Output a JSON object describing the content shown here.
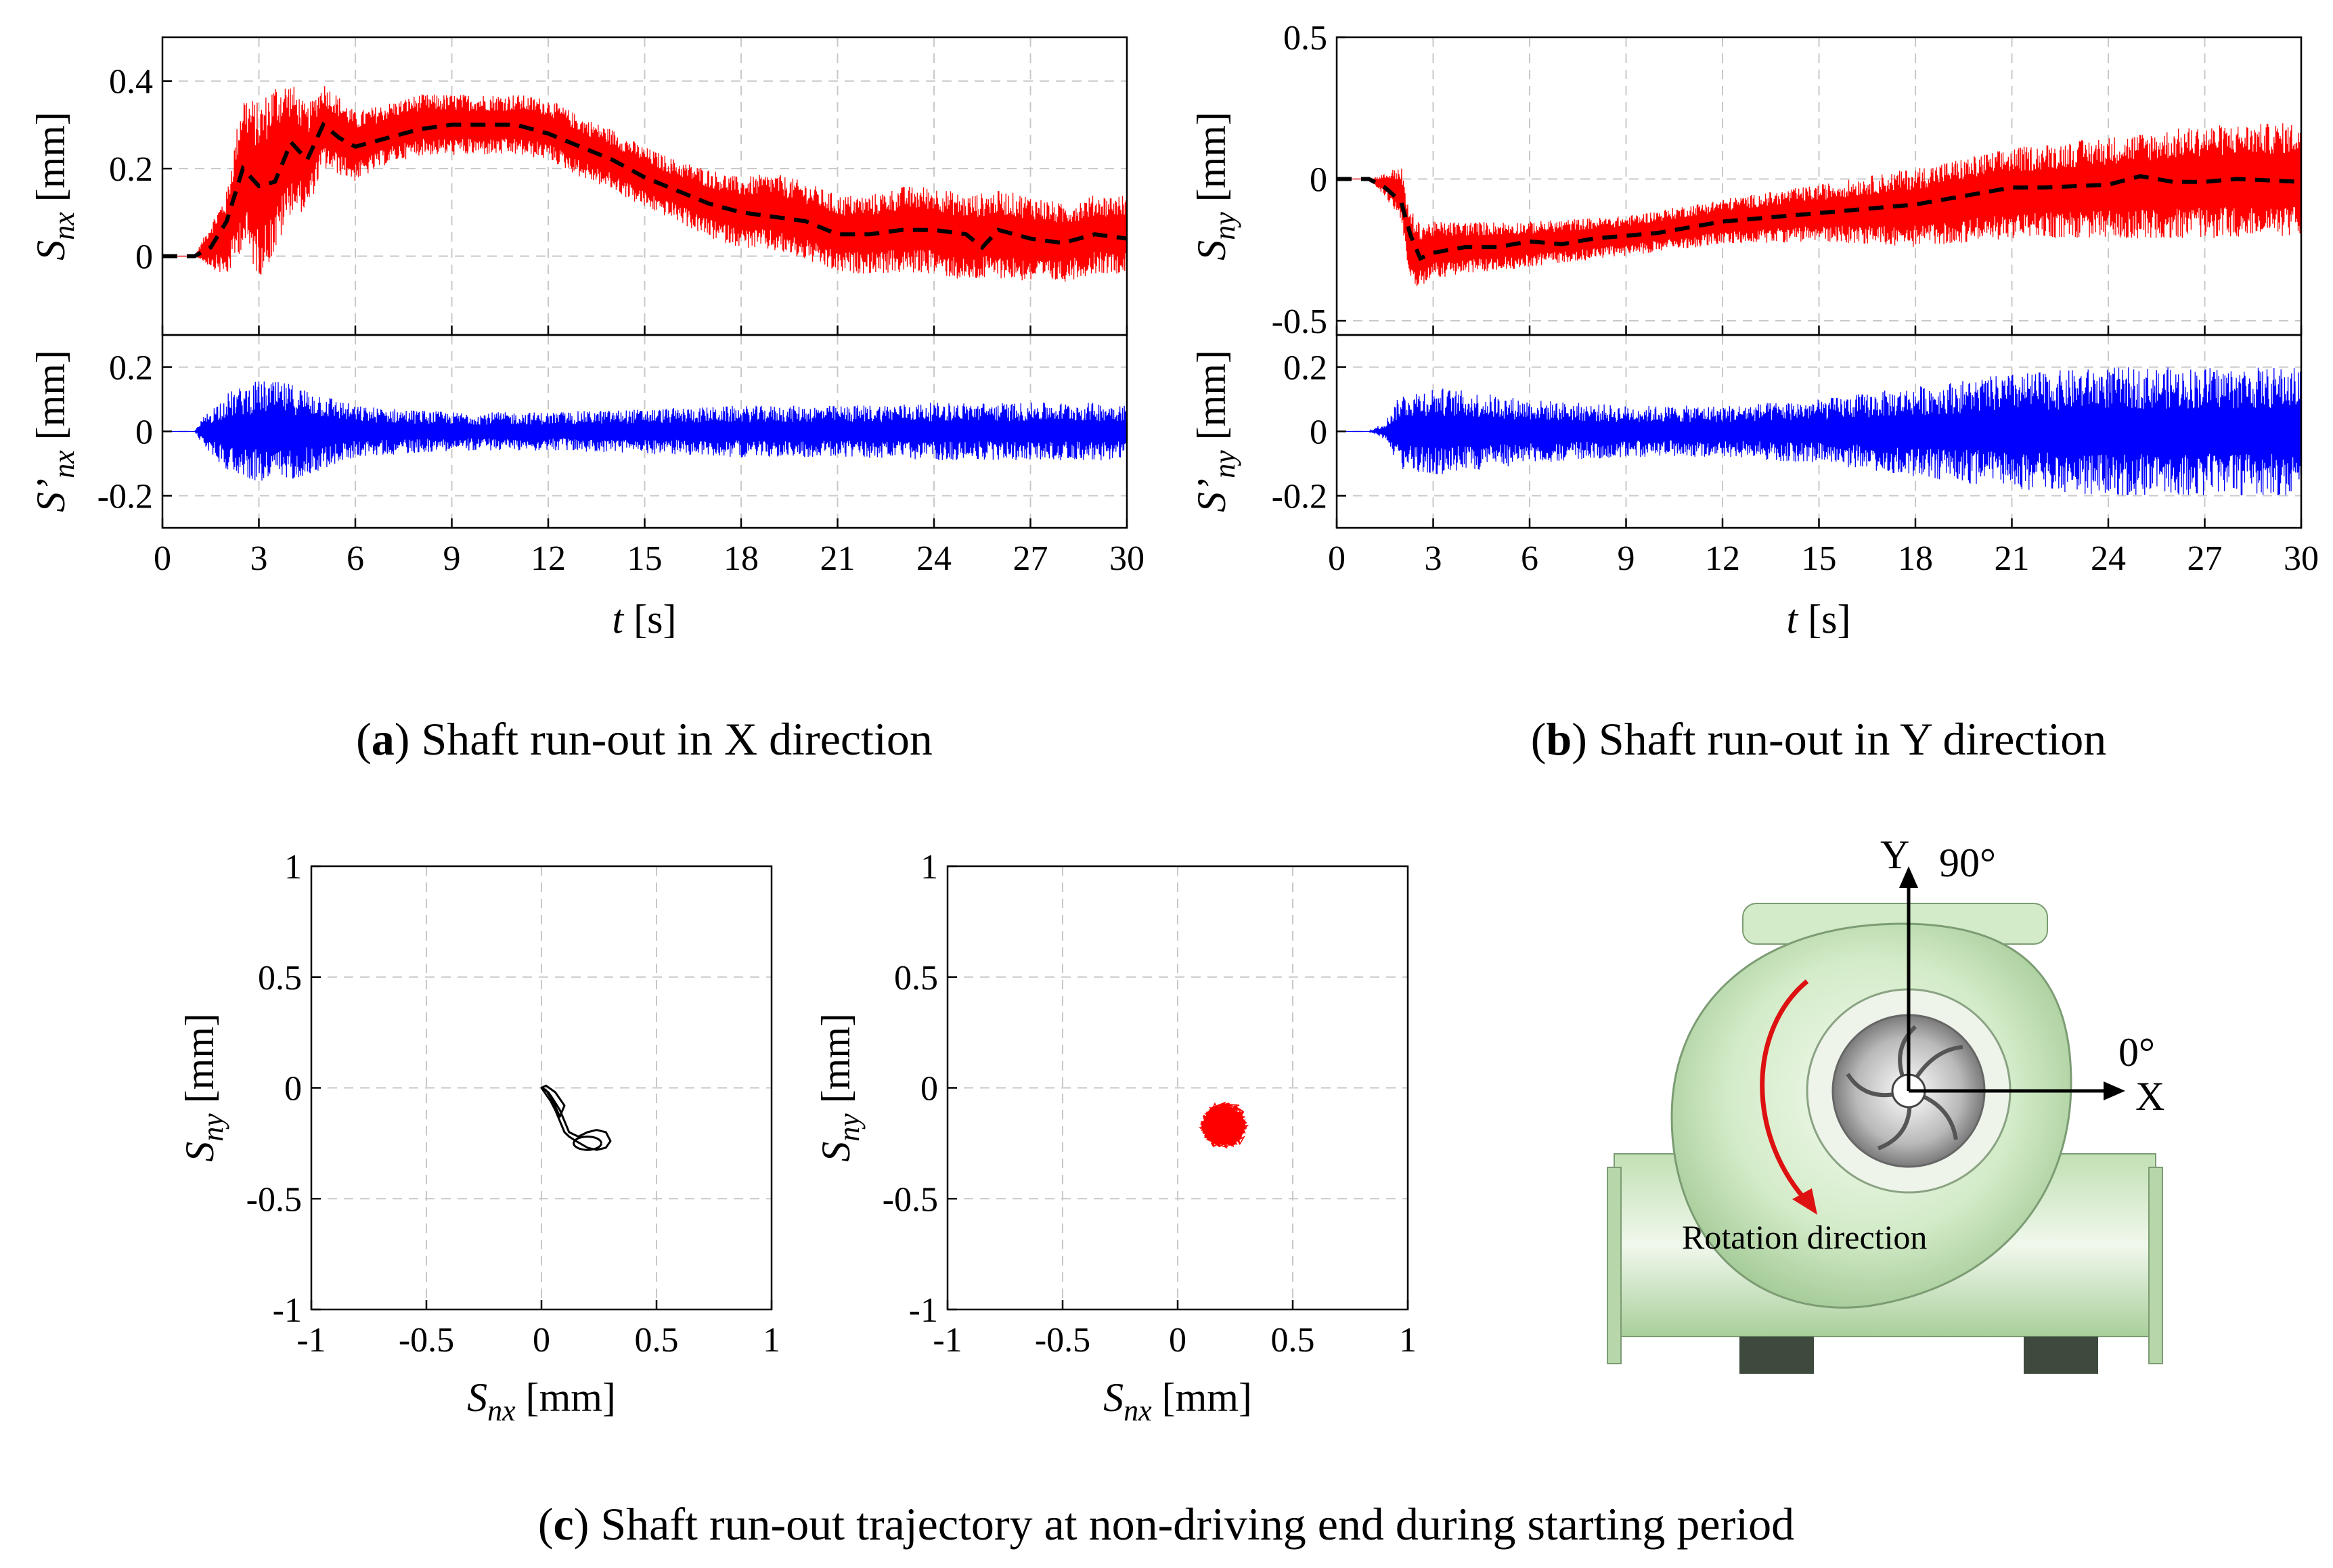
{
  "colors": {
    "raw_signal": "#ff0000",
    "mean_curve": "#000000",
    "oscillation": "#0000ff",
    "orbit_a": "#000000",
    "orbit_b": "#ff0000",
    "arrow": "#dd1111",
    "volute": "#cfe8c4"
  },
  "captions": {
    "a": {
      "label": "a",
      "text": ") Shaft run-out in X direction"
    },
    "b": {
      "label": "b",
      "text": ") Shaft run-out in Y direction"
    },
    "c": {
      "label": "c",
      "text": ") Shaft run-out trajectory at non-driving end during starting period"
    }
  },
  "pump": {
    "y_axis_label": "Y",
    "y_angle": "90°",
    "x_axis_label": "X",
    "x_angle": "0°",
    "rotation_label": "Rotation direction",
    "icon": "pump-volute-icon"
  },
  "chart_data": [
    {
      "id": "a-top",
      "type": "line",
      "xlim": [
        0,
        30
      ],
      "ylim": [
        -0.18,
        0.5
      ],
      "yticks": [
        "0",
        "0.2",
        "0.4"
      ],
      "ytick_values": [
        0,
        0.2,
        0.4
      ],
      "ylabel_main": "S",
      "ylabel_sub": "nx",
      "ylabel_unit": " [mm]",
      "grid": true,
      "series": [
        {
          "kind": "raw",
          "x": [
            0,
            1,
            2,
            2.5,
            3,
            3.5,
            4,
            4.5,
            5,
            6,
            7,
            8,
            9,
            10,
            11,
            12,
            13,
            14,
            15,
            16,
            17,
            18,
            19,
            20,
            21,
            22,
            23,
            24,
            25,
            26,
            27,
            28,
            29,
            30
          ],
          "mean": [
            0,
            0,
            0.05,
            0.2,
            0.15,
            0.2,
            0.25,
            0.22,
            0.3,
            0.25,
            0.28,
            0.3,
            0.3,
            0.3,
            0.3,
            0.29,
            0.25,
            0.22,
            0.18,
            0.15,
            0.12,
            0.1,
            0.1,
            0.08,
            0.05,
            0.05,
            0.06,
            0.06,
            0.04,
            0.05,
            0.04,
            0.03,
            0.05,
            0.05
          ],
          "amp": [
            0,
            0,
            0.1,
            0.18,
            0.2,
            0.2,
            0.15,
            0.12,
            0.1,
            0.08,
            0.07,
            0.07,
            0.07,
            0.07,
            0.07,
            0.07,
            0.07,
            0.07,
            0.07,
            0.07,
            0.08,
            0.08,
            0.09,
            0.09,
            0.09,
            0.09,
            0.1,
            0.1,
            0.1,
            0.1,
            0.1,
            0.09,
            0.09,
            0.09
          ]
        },
        {
          "kind": "mean",
          "x": [
            0,
            1,
            1.5,
            2,
            2.5,
            3,
            3.5,
            4,
            4.5,
            5,
            5.5,
            6,
            7,
            8,
            9,
            10,
            11,
            12,
            13,
            14,
            15,
            16,
            17,
            18,
            19,
            20,
            21,
            22,
            23,
            24,
            25,
            25.5,
            26,
            27,
            28,
            29,
            30
          ],
          "y": [
            0,
            0,
            0.02,
            0.08,
            0.2,
            0.16,
            0.17,
            0.26,
            0.22,
            0.3,
            0.27,
            0.25,
            0.27,
            0.29,
            0.3,
            0.3,
            0.3,
            0.28,
            0.25,
            0.22,
            0.18,
            0.15,
            0.12,
            0.1,
            0.09,
            0.08,
            0.05,
            0.05,
            0.06,
            0.06,
            0.05,
            0.02,
            0.06,
            0.04,
            0.03,
            0.05,
            0.04
          ]
        }
      ]
    },
    {
      "id": "a-bottom",
      "type": "line",
      "xlim": [
        0,
        30
      ],
      "ylim": [
        -0.3,
        0.3
      ],
      "yticks": [
        "-0.2",
        "0",
        "0.2"
      ],
      "ytick_values": [
        -0.2,
        0,
        0.2
      ],
      "xticks": [
        "0",
        "3",
        "6",
        "9",
        "12",
        "15",
        "18",
        "21",
        "24",
        "27",
        "30"
      ],
      "xlabel_main": "t",
      "xlabel_unit": " [s]",
      "ylabel_main": "S’",
      "ylabel_sub": "nx",
      "ylabel_unit": " [mm]",
      "grid": true,
      "series": [
        {
          "kind": "osc",
          "x": [
            0,
            1,
            1.3,
            2,
            3,
            4,
            5,
            6,
            9,
            12,
            15,
            18,
            21,
            24,
            27,
            30
          ],
          "amp": [
            0,
            0,
            0.05,
            0.12,
            0.16,
            0.15,
            0.12,
            0.08,
            0.06,
            0.06,
            0.07,
            0.08,
            0.08,
            0.09,
            0.09,
            0.09
          ]
        }
      ]
    },
    {
      "id": "b-top",
      "type": "line",
      "xlim": [
        0,
        30
      ],
      "ylim": [
        -0.55,
        0.5
      ],
      "yticks": [
        "-0.5",
        "0",
        "0.5"
      ],
      "ytick_values": [
        -0.5,
        0,
        0.5
      ],
      "ylabel_main": "S",
      "ylabel_sub": "ny",
      "ylabel_unit": " [mm]",
      "grid": true,
      "series": [
        {
          "kind": "raw",
          "x": [
            0,
            1,
            1.5,
            2,
            2.2,
            2.5,
            3,
            6,
            9,
            12,
            15,
            18,
            21,
            24,
            27,
            30
          ],
          "mean": [
            0,
            0,
            -0.02,
            -0.05,
            -0.2,
            -0.27,
            -0.25,
            -0.23,
            -0.2,
            -0.15,
            -0.12,
            -0.1,
            -0.05,
            -0.03,
            -0.01,
            0
          ],
          "amp": [
            0,
            0,
            0.04,
            0.1,
            0.12,
            0.12,
            0.1,
            0.08,
            0.07,
            0.08,
            0.1,
            0.14,
            0.16,
            0.18,
            0.2,
            0.2
          ]
        },
        {
          "kind": "mean",
          "x": [
            0,
            1,
            1.5,
            2,
            2.3,
            2.6,
            3,
            4,
            5,
            6,
            7,
            8,
            9,
            10,
            12,
            14,
            16,
            18,
            20,
            21,
            22,
            24,
            25,
            26,
            27,
            28,
            30
          ],
          "y": [
            0,
            0,
            -0.03,
            -0.08,
            -0.2,
            -0.28,
            -0.26,
            -0.24,
            -0.24,
            -0.22,
            -0.23,
            -0.21,
            -0.2,
            -0.19,
            -0.15,
            -0.13,
            -0.11,
            -0.09,
            -0.05,
            -0.03,
            -0.03,
            -0.02,
            0.01,
            -0.01,
            -0.01,
            0,
            -0.01
          ]
        }
      ]
    },
    {
      "id": "b-bottom",
      "type": "line",
      "xlim": [
        0,
        30
      ],
      "ylim": [
        -0.3,
        0.3
      ],
      "yticks": [
        "-0.2",
        "0",
        "0.2"
      ],
      "ytick_values": [
        -0.2,
        0,
        0.2
      ],
      "xticks": [
        "0",
        "3",
        "6",
        "9",
        "12",
        "15",
        "18",
        "21",
        "24",
        "27",
        "30"
      ],
      "xlabel_main": "t",
      "xlabel_unit": " [s]",
      "ylabel_main": "S’",
      "ylabel_sub": "ny",
      "ylabel_unit": " [mm]",
      "grid": true,
      "series": [
        {
          "kind": "osc",
          "x": [
            0,
            1,
            1.5,
            2,
            3,
            6,
            9,
            12,
            15,
            18,
            21,
            24,
            27,
            30
          ],
          "amp": [
            0,
            0,
            0.03,
            0.12,
            0.14,
            0.1,
            0.08,
            0.08,
            0.1,
            0.14,
            0.18,
            0.2,
            0.2,
            0.2
          ]
        }
      ]
    },
    {
      "id": "c-left",
      "type": "scatter",
      "xlim": [
        -1,
        1
      ],
      "ylim": [
        -1,
        1
      ],
      "xticks": [
        "-1",
        "-0.5",
        "0",
        "0.5",
        "1"
      ],
      "xtick_values": [
        -1,
        -0.5,
        0,
        0.5,
        1
      ],
      "yticks": [
        "-1",
        "-0.5",
        "0",
        "0.5",
        "1"
      ],
      "ytick_values": [
        -1,
        -0.5,
        0,
        0.5,
        1
      ],
      "xlabel_main": "S",
      "xlabel_sub": "nx",
      "xlabel_unit": " [mm]",
      "ylabel_main": "S",
      "ylabel_sub": "ny",
      "ylabel_unit": " [mm]",
      "grid": true,
      "series": [
        {
          "kind": "orbit-path",
          "x": [
            0,
            0.03,
            0.05,
            0.08,
            0.1,
            0.12,
            0.16,
            0.2,
            0.24,
            0.28,
            0.3,
            0.28,
            0.24,
            0.2,
            0.15,
            0.12,
            0.1,
            0.08,
            0.06,
            0.04,
            0.02,
            0.0,
            0.02,
            0.06,
            0.1,
            0.08,
            0.05,
            0.02,
            0.0
          ],
          "y": [
            0,
            -0.02,
            -0.05,
            -0.1,
            -0.15,
            -0.2,
            -0.22,
            -0.2,
            -0.19,
            -0.2,
            -0.24,
            -0.27,
            -0.28,
            -0.27,
            -0.24,
            -0.22,
            -0.2,
            -0.15,
            -0.1,
            -0.06,
            -0.03,
            0,
            0.01,
            -0.02,
            -0.08,
            -0.13,
            -0.06,
            -0.01,
            0
          ]
        }
      ]
    },
    {
      "id": "c-right",
      "type": "scatter",
      "xlim": [
        -1,
        1
      ],
      "ylim": [
        -1,
        1
      ],
      "xticks": [
        "-1",
        "-0.5",
        "0",
        "0.5",
        "1"
      ],
      "xtick_values": [
        -1,
        -0.5,
        0,
        0.5,
        1
      ],
      "yticks": [
        "-1",
        "-0.5",
        "0",
        "0.5",
        "1"
      ],
      "ytick_values": [
        -1,
        -0.5,
        0,
        0.5,
        1
      ],
      "xlabel_main": "S",
      "xlabel_sub": "nx",
      "xlabel_unit": " [mm]",
      "ylabel_main": "S",
      "ylabel_sub": "ny",
      "ylabel_unit": " [mm]",
      "grid": true,
      "series": [
        {
          "kind": "orbit-cloud",
          "center": [
            0.2,
            -0.17
          ],
          "spread": [
            0.13,
            0.13
          ],
          "xrange": [
            -0.05,
            0.4
          ],
          "yrange": [
            -0.4,
            0.1
          ]
        }
      ]
    }
  ]
}
